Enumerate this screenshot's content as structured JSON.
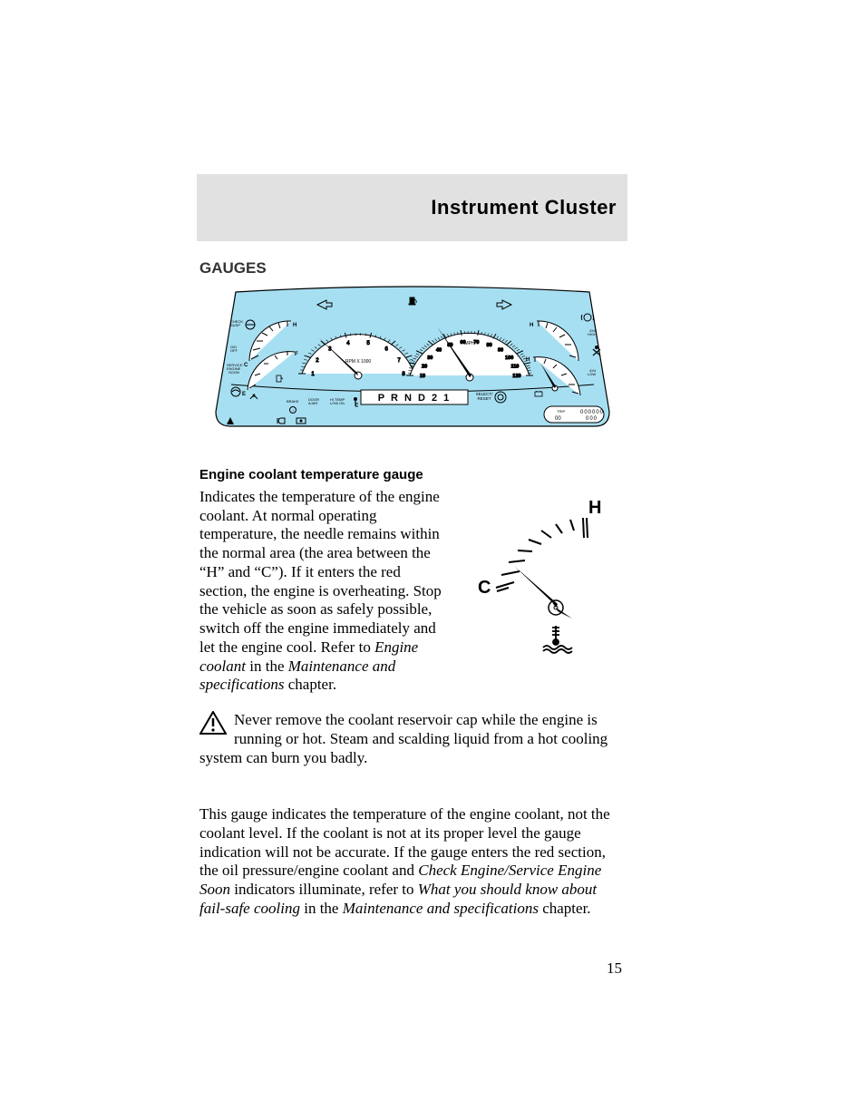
{
  "page": {
    "number": "15",
    "chapter_title": "Instrument Cluster"
  },
  "headings": {
    "gauges": "GAUGES",
    "coolant": "Engine coolant temperature gauge"
  },
  "coolant_text": {
    "p1a": "Indicates the temperature of the engine coolant. At normal operating temperature, the needle remains within the normal area (the area between the “H” and “C”). If it enters the red section, the engine is overheating. Stop the vehicle as soon as safely possible, switch off the engine immediately and let the engine cool. Refer to ",
    "p1b": "Engine coolant",
    "p1c": " in the ",
    "p1d": "Maintenance and specifications",
    "p1e": " chapter."
  },
  "warning": {
    "text": "Never remove the coolant reservoir cap while the engine is running or hot. Steam and scalding liquid from a hot cooling system can burn you badly."
  },
  "note": {
    "a": "This gauge indicates the temperature of the engine coolant, not the coolant level. If the coolant is not at its proper level the gauge indication will not be accurate. If the gauge enters the red section, the oil pressure/engine coolant and ",
    "b": "Check Engine/Service Engine Soon",
    "c": " indicators illuminate, refer to ",
    "d": "What you should know about fail-safe cooling",
    "e": " in the ",
    "f": "Maintenance and specifications",
    "g": " chapter."
  },
  "cluster": {
    "bg_color": "#a7dff2",
    "outline_color": "#000000",
    "face_color": "#ffffff",
    "gear_text": "P  R N D 2 1",
    "select_label": "SELECT/\nRESET",
    "odometer_label": "TRIP",
    "odometer_digits": "000000",
    "odometer_trip": "00",
    "odometer_sub": "000",
    "speedo": {
      "unit": "MPH",
      "ticks": [
        "10",
        "20",
        "30",
        "40",
        "50",
        "60",
        "70",
        "80",
        "90",
        "100",
        "110",
        "120"
      ]
    },
    "tach": {
      "label": "RPM X 1000",
      "ticks": [
        "1",
        "2",
        "3",
        "4",
        "5",
        "6",
        "7",
        "8"
      ]
    },
    "small_gauges": {
      "left_top": {
        "letters_top": "H",
        "letters_bot": "F",
        "sub": "C",
        "sub2": "E"
      },
      "right_top": {
        "letters_top": "H"
      },
      "right_bot": {
        "letters_top": "H"
      }
    },
    "indicator_labels": {
      "check": "CHECK\nSUSP",
      "od": "O/D\nOFF",
      "svc": "SERVICE\nENGINE\nSOON",
      "brake": "BRAKE",
      "door": "DOOR\nAJAR",
      "hitemp": "HI TEMP\nLOW OIL",
      "four_hi": "4X4\nHIGH",
      "four_lo": "4X4\nLOW"
    }
  },
  "gauge_detail": {
    "hot": "H",
    "cold": "C"
  },
  "colors": {
    "grey_bar": "#e1e1e1",
    "cluster_blue": "#a7dff2"
  }
}
